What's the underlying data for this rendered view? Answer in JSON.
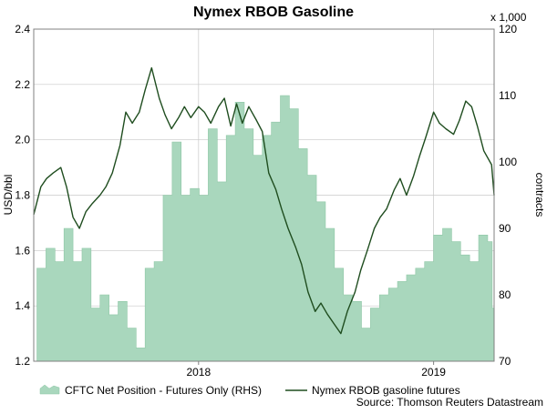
{
  "chart_data": {
    "type": "area",
    "title": "Nymex RBOB Gasoline",
    "ylabel": "USD/bbl",
    "y2label": "contracts",
    "y2_multiplier_label": "x 1,000",
    "source": "Source: Thomson Reuters Datastream",
    "x_ticks": [
      "2018",
      "2019"
    ],
    "x_tick_positions": [
      "2018-01-01",
      "2019-01-01"
    ],
    "x_range": [
      "2017-04-20",
      "2019-04-05"
    ],
    "ylim": [
      1.2,
      2.4
    ],
    "y2lim": [
      70,
      120
    ],
    "y_ticks": [
      "1.2",
      "1.4",
      "1.6",
      "1.8",
      "2.0",
      "2.2",
      "2.4"
    ],
    "y2_ticks": [
      "70",
      "80",
      "90",
      "100",
      "110",
      "120"
    ],
    "grid": true,
    "legend_position": "bottom",
    "colors": {
      "area_fill": "#a9d7bd",
      "area_stroke": "#8fc7a6",
      "line": "#1f4d1f",
      "grid": "#c8c8c8"
    },
    "series": [
      {
        "name": "CFTC Net Position - Futures Only (RHS)",
        "axis": "right",
        "kind": "area",
        "x": [
          "2017-04-25",
          "2017-05-09",
          "2017-05-23",
          "2017-06-06",
          "2017-06-20",
          "2017-07-04",
          "2017-07-18",
          "2017-08-01",
          "2017-08-15",
          "2017-08-29",
          "2017-09-12",
          "2017-09-26",
          "2017-10-10",
          "2017-10-24",
          "2017-11-07",
          "2017-11-21",
          "2017-12-05",
          "2017-12-19",
          "2018-01-02",
          "2018-01-16",
          "2018-01-30",
          "2018-02-13",
          "2018-02-27",
          "2018-03-13",
          "2018-03-27",
          "2018-04-10",
          "2018-04-24",
          "2018-05-08",
          "2018-05-22",
          "2018-06-05",
          "2018-06-19",
          "2018-07-03",
          "2018-07-17",
          "2018-07-31",
          "2018-08-14",
          "2018-08-28",
          "2018-09-11",
          "2018-09-25",
          "2018-10-09",
          "2018-10-23",
          "2018-11-06",
          "2018-11-20",
          "2018-12-04",
          "2018-12-18",
          "2019-01-01",
          "2019-01-15",
          "2019-01-29",
          "2019-02-12",
          "2019-02-26",
          "2019-03-12",
          "2019-03-26",
          "2019-04-02"
        ],
        "values": [
          84,
          87,
          85,
          90,
          85,
          87,
          78,
          80,
          77,
          79,
          75,
          72,
          84,
          85,
          95,
          103,
          95,
          96,
          95,
          105,
          97,
          104,
          109,
          105,
          101,
          104,
          106,
          110,
          108,
          102,
          98,
          94,
          90,
          84,
          80,
          79,
          75,
          78,
          80,
          81,
          82,
          83,
          84,
          85,
          89,
          90,
          88,
          86,
          85,
          89,
          88,
          78
        ]
      },
      {
        "name": "Nymex RBOB gasoline futures",
        "axis": "left",
        "kind": "line",
        "x": [
          "2017-04-20",
          "2017-05-01",
          "2017-05-10",
          "2017-05-20",
          "2017-06-01",
          "2017-06-10",
          "2017-06-20",
          "2017-06-30",
          "2017-07-10",
          "2017-07-20",
          "2017-08-01",
          "2017-08-10",
          "2017-08-20",
          "2017-09-01",
          "2017-09-10",
          "2017-09-20",
          "2017-10-01",
          "2017-10-10",
          "2017-10-20",
          "2017-11-01",
          "2017-11-10",
          "2017-11-20",
          "2017-12-01",
          "2017-12-10",
          "2017-12-20",
          "2018-01-01",
          "2018-01-10",
          "2018-01-20",
          "2018-02-01",
          "2018-02-10",
          "2018-02-20",
          "2018-03-01",
          "2018-03-10",
          "2018-03-20",
          "2018-04-01",
          "2018-04-10",
          "2018-04-20",
          "2018-05-01",
          "2018-05-10",
          "2018-05-20",
          "2018-06-01",
          "2018-06-10",
          "2018-06-20",
          "2018-07-01",
          "2018-07-10",
          "2018-07-20",
          "2018-08-01",
          "2018-08-10",
          "2018-08-20",
          "2018-09-01",
          "2018-09-10",
          "2018-09-20",
          "2018-10-01",
          "2018-10-10",
          "2018-10-20",
          "2018-11-01",
          "2018-11-10",
          "2018-11-20",
          "2018-12-01",
          "2018-12-10",
          "2018-12-20",
          "2019-01-01",
          "2019-01-10",
          "2019-01-20",
          "2019-02-01",
          "2019-02-10",
          "2019-02-20",
          "2019-03-01",
          "2019-03-10",
          "2019-03-20",
          "2019-04-01",
          "2019-04-05"
        ],
        "values": [
          1.73,
          1.83,
          1.86,
          1.88,
          1.9,
          1.83,
          1.72,
          1.68,
          1.74,
          1.77,
          1.8,
          1.83,
          1.88,
          1.98,
          2.1,
          2.06,
          2.1,
          2.18,
          2.26,
          2.15,
          2.09,
          2.04,
          2.08,
          2.12,
          2.08,
          2.12,
          2.1,
          2.06,
          2.12,
          2.15,
          2.05,
          2.13,
          2.06,
          2.12,
          2.07,
          2.03,
          1.88,
          1.82,
          1.75,
          1.68,
          1.61,
          1.55,
          1.45,
          1.38,
          1.41,
          1.37,
          1.33,
          1.3,
          1.38,
          1.45,
          1.53,
          1.6,
          1.68,
          1.72,
          1.75,
          1.82,
          1.86,
          1.8,
          1.87,
          1.94,
          2.01,
          2.1,
          2.06,
          2.04,
          2.02,
          2.07,
          2.14,
          2.12,
          2.05,
          1.96,
          1.91,
          1.8
        ]
      }
    ]
  }
}
